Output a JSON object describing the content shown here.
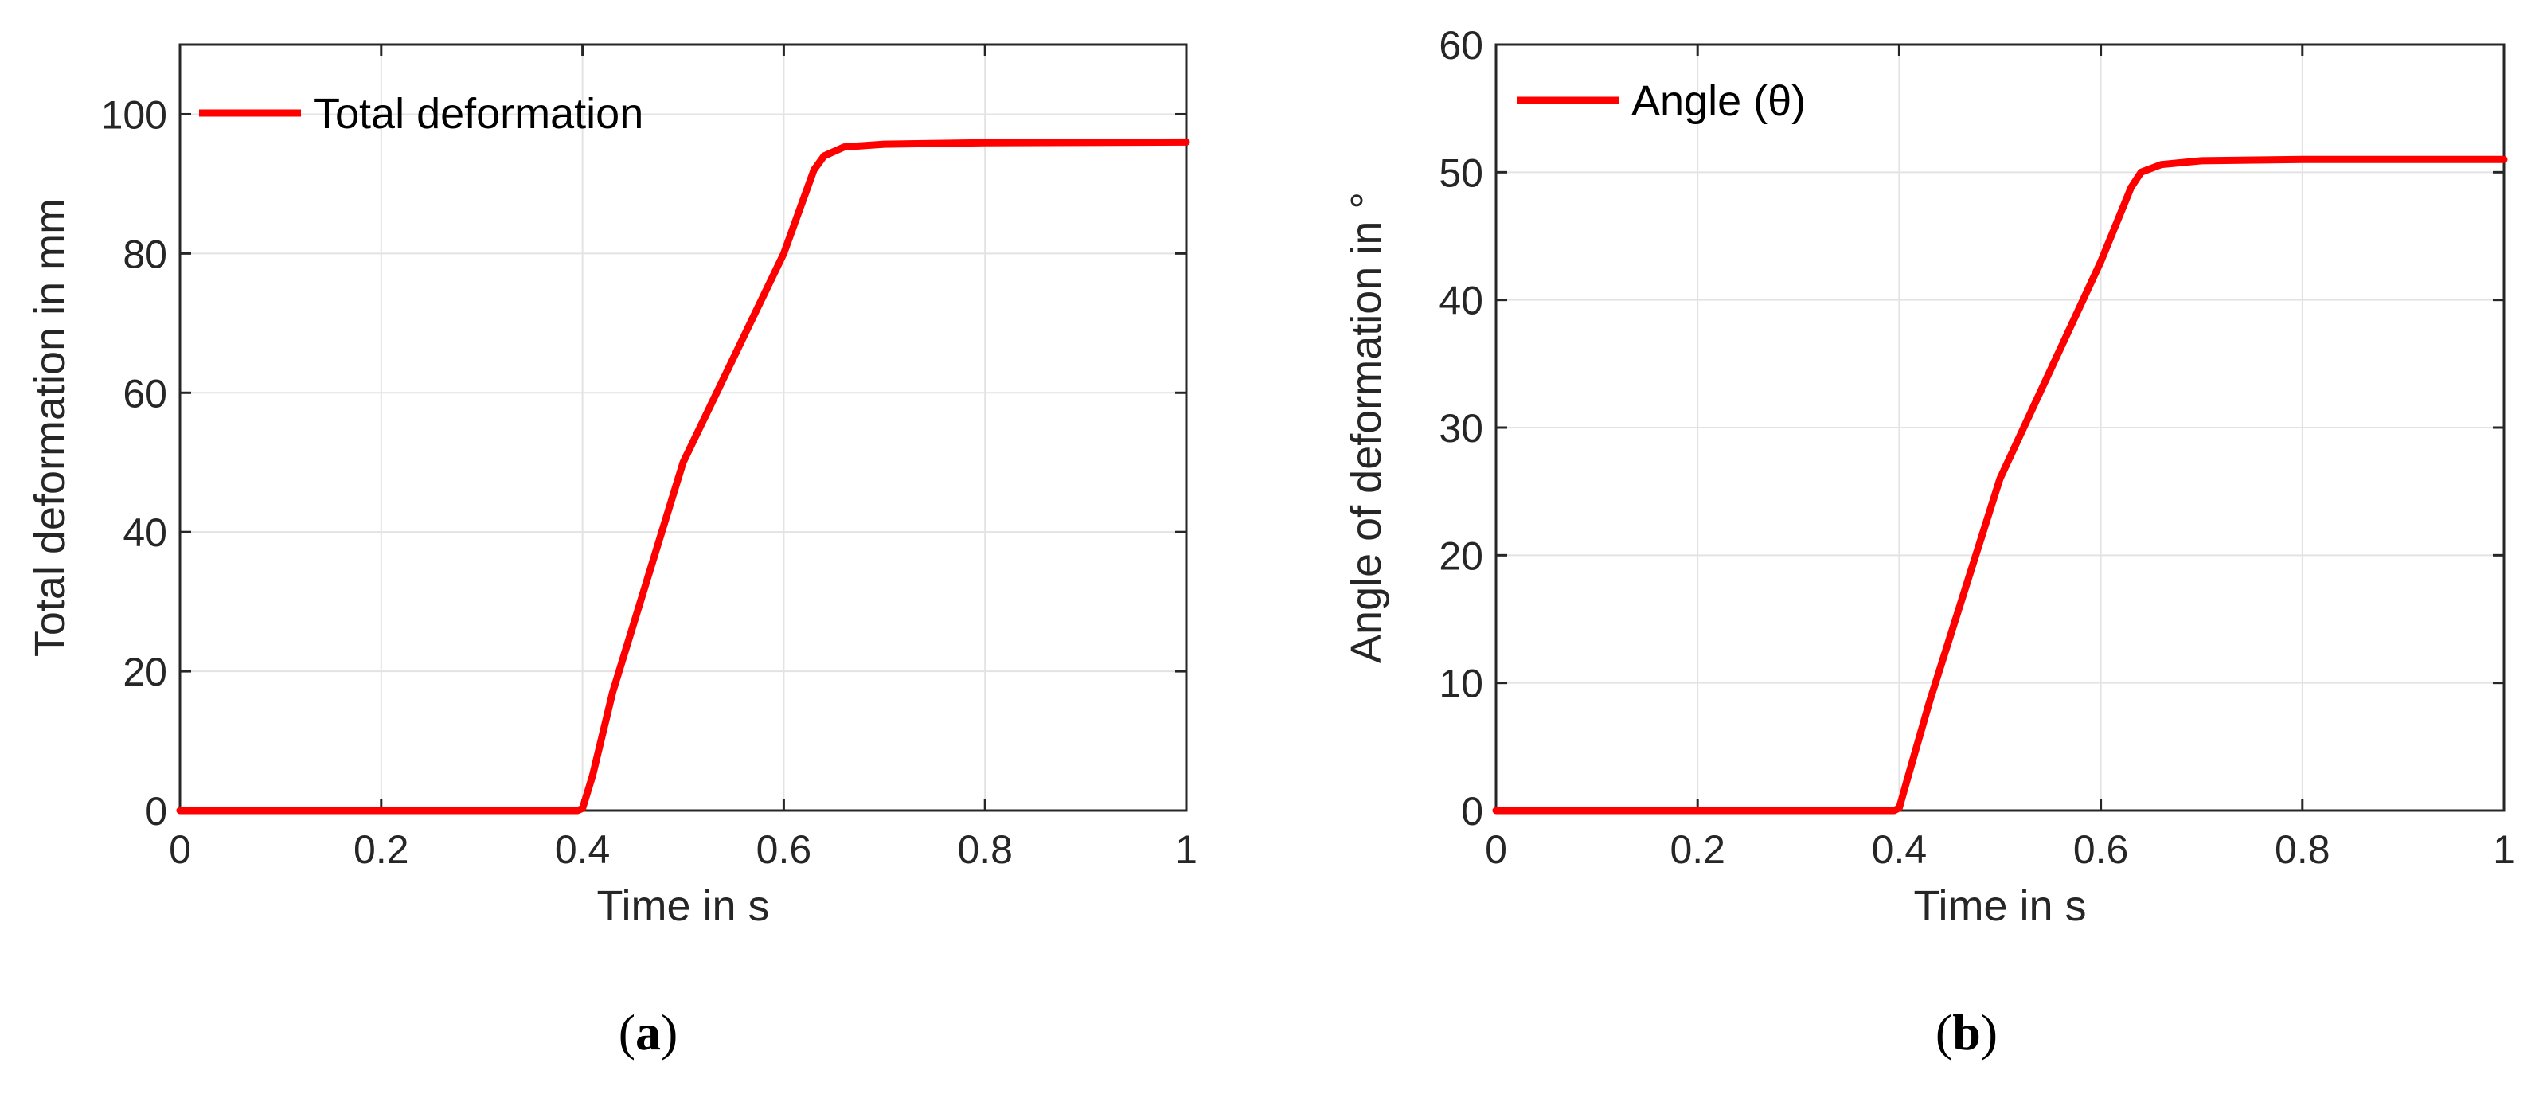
{
  "colors": {
    "line": "#ff0000",
    "axis": "#262626",
    "grid": "#e3e3e3"
  },
  "chart_data": [
    {
      "type": "line",
      "panel_label": "a",
      "xlabel": "Time in s",
      "ylabel": "Total deformation in mm",
      "xlim": [
        0,
        1
      ],
      "ylim": [
        0,
        110
      ],
      "xticks": [
        0,
        0.2,
        0.4,
        0.6,
        0.8,
        1
      ],
      "xtick_labels": [
        "0",
        "0.2",
        "0.4",
        "0.6",
        "0.8",
        "1"
      ],
      "yticks": [
        0,
        20,
        40,
        60,
        80,
        100
      ],
      "ytick_labels": [
        "0",
        "20",
        "40",
        "60",
        "80",
        "100"
      ],
      "grid": true,
      "legend_position": "top-left",
      "series": [
        {
          "name": "Total deformation",
          "x": [
            0,
            0.2,
            0.395,
            0.4,
            0.41,
            0.43,
            0.5,
            0.6,
            0.63,
            0.64,
            0.66,
            0.7,
            0.8,
            1.0
          ],
          "y": [
            0,
            0,
            0,
            0.3,
            5,
            17,
            50,
            80,
            92,
            94,
            95.3,
            95.7,
            95.9,
            96
          ]
        }
      ]
    },
    {
      "type": "line",
      "panel_label": "b",
      "xlabel": "Time in s",
      "ylabel": "Angle of deformation in °",
      "xlim": [
        0,
        1
      ],
      "ylim": [
        0,
        60
      ],
      "xticks": [
        0,
        0.2,
        0.4,
        0.6,
        0.8,
        1
      ],
      "xtick_labels": [
        "0",
        "0.2",
        "0.4",
        "0.6",
        "0.8",
        "1"
      ],
      "yticks": [
        0,
        10,
        20,
        30,
        40,
        50,
        60
      ],
      "ytick_labels": [
        "0",
        "10",
        "20",
        "30",
        "40",
        "50",
        "60"
      ],
      "grid": true,
      "legend_position": "top-left",
      "series": [
        {
          "name": "Angle (θ)",
          "x": [
            0,
            0.2,
            0.395,
            0.4,
            0.41,
            0.43,
            0.5,
            0.6,
            0.63,
            0.64,
            0.66,
            0.7,
            0.8,
            1.0
          ],
          "y": [
            0,
            0,
            0,
            0.2,
            3,
            8.5,
            26,
            43,
            48.8,
            50,
            50.6,
            50.9,
            51,
            51
          ]
        }
      ]
    }
  ],
  "captions": {
    "a": {
      "open": "(",
      "label": "a",
      "close": ")"
    },
    "b": {
      "open": "(",
      "label": "b",
      "close": ")"
    }
  }
}
